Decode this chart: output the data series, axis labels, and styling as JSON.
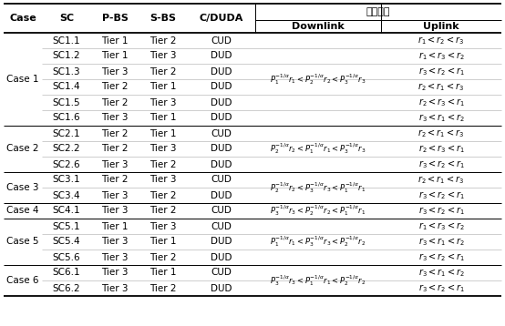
{
  "title_cn": "级联条件",
  "col_headers": [
    "Case",
    "SC",
    "P-BS",
    "S-BS",
    "C/DUDA",
    "Downlink",
    "Uplink"
  ],
  "rows": [
    [
      "Case 1",
      "SC1.1",
      "Tier 1",
      "Tier 2",
      "CUD"
    ],
    [
      "Case 1",
      "SC1.2",
      "Tier 1",
      "Tier 3",
      "DUD"
    ],
    [
      "Case 1",
      "SC1.3",
      "Tier 3",
      "Tier 2",
      "DUD"
    ],
    [
      "Case 1",
      "SC1.4",
      "Tier 2",
      "Tier 1",
      "DUD"
    ],
    [
      "Case 1",
      "SC1.5",
      "Tier 2",
      "Tier 3",
      "DUD"
    ],
    [
      "Case 1",
      "SC1.6",
      "Tier 3",
      "Tier 1",
      "DUD"
    ],
    [
      "Case 2",
      "SC2.1",
      "Tier 2",
      "Tier 1",
      "CUD"
    ],
    [
      "Case 2",
      "SC2.2",
      "Tier 2",
      "Tier 3",
      "DUD"
    ],
    [
      "Case 2",
      "SC2.6",
      "Tier 3",
      "Tier 2",
      "DUD"
    ],
    [
      "Case 3",
      "SC3.1",
      "Tier 2",
      "Tier 3",
      "CUD"
    ],
    [
      "Case 3",
      "SC3.4",
      "Tier 3",
      "Tier 2",
      "DUD"
    ],
    [
      "Case 4",
      "SC4.1",
      "Tier 3",
      "Tier 2",
      "CUD"
    ],
    [
      "Case 5",
      "SC5.1",
      "Tier 1",
      "Tier 3",
      "CUD"
    ],
    [
      "Case 5",
      "SC5.4",
      "Tier 3",
      "Tier 1",
      "DUD"
    ],
    [
      "Case 5",
      "SC5.6",
      "Tier 3",
      "Tier 2",
      "DUD"
    ],
    [
      "Case 6",
      "SC6.1",
      "Tier 3",
      "Tier 1",
      "CUD"
    ],
    [
      "Case 6",
      "SC6.2",
      "Tier 3",
      "Tier 2",
      "DUD"
    ]
  ],
  "case_groups": [
    {
      "name": "Case 1",
      "start": 0,
      "end": 5
    },
    {
      "name": "Case 2",
      "start": 6,
      "end": 8
    },
    {
      "name": "Case 3",
      "start": 9,
      "end": 10
    },
    {
      "name": "Case 4",
      "start": 11,
      "end": 11
    },
    {
      "name": "Case 5",
      "start": 12,
      "end": 14
    },
    {
      "name": "Case 6",
      "start": 15,
      "end": 16
    }
  ],
  "downlink_texts": [
    "$P_1^{-1/a}r_1 < P_2^{-1/a}r_2 < P_3^{-1/a}r_3$",
    "$P_2^{-1/a}r_2 < P_1^{-1/a}r_1 < P_3^{-1/a}r_3$",
    "$P_2^{-1/a}r_2 < P_3^{-1/a}r_3 < P_1^{-1/a}r_1$",
    "$P_3^{-1/a}r_3 < P_2^{-1/a}r_2 < P_1^{-1/a}r_1$",
    "$P_1^{-1/a}r_1 < P_3^{-1/a}r_3 < P_2^{-1/a}r_2$",
    "$P_3^{-1/a}r_3 < P_1^{-1/a}r_1 < P_2^{-1/a}r_2$"
  ],
  "uplink_texts": [
    "$r_1 < r_2 < r_3$",
    "$r_1 < r_3 < r_2$",
    "$r_3 < r_2 < r_1$",
    "$r_2 < r_1 < r_3$",
    "$r_2 < r_3 < r_1$",
    "$r_3 < r_1 < r_2$",
    "$r_2 < r_1 < r_3$",
    "$r_2 < r_3 < r_1$",
    "$r_3 < r_2 < r_1$",
    "$r_2 < r_1 < r_3$",
    "$r_3 < r_2 < r_1$",
    "$r_3 < r_2 < r_1$",
    "$r_1 < r_3 < r_2$",
    "$r_3 < r_1 < r_2$",
    "$r_3 < r_2 < r_1$",
    "$r_3 < r_1 < r_2$",
    "$r_3 < r_2 < r_1$"
  ],
  "bg_color": "#ffffff",
  "text_color": "#000000"
}
